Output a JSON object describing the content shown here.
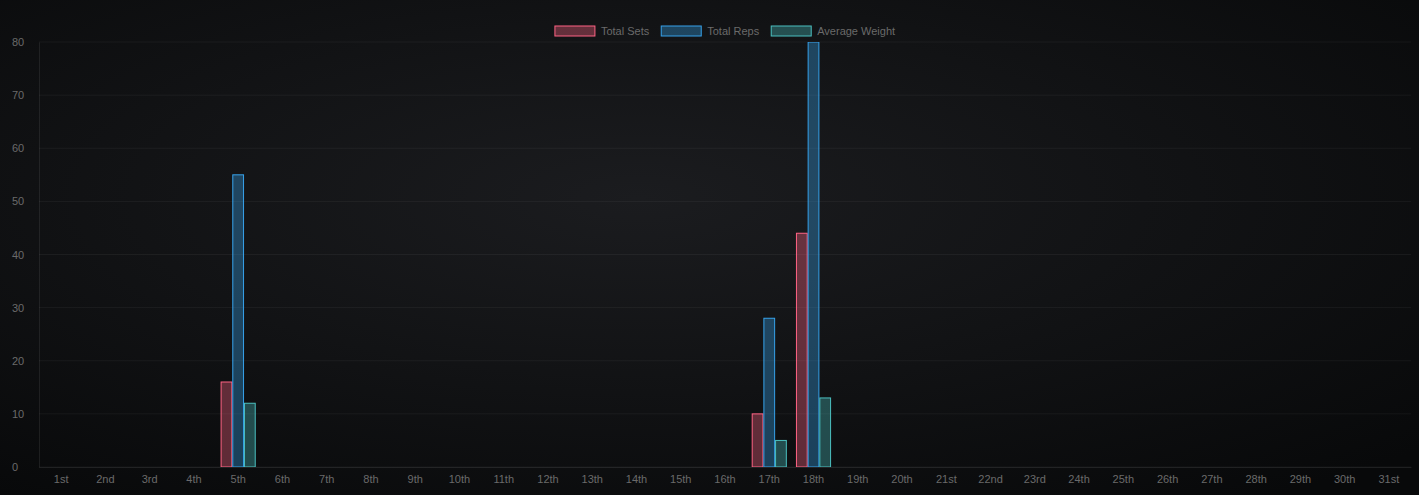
{
  "chart_data": {
    "type": "bar",
    "categories": [
      "1st",
      "2nd",
      "3rd",
      "4th",
      "5th",
      "6th",
      "7th",
      "8th",
      "9th",
      "10th",
      "11th",
      "12th",
      "13th",
      "14th",
      "15th",
      "16th",
      "17th",
      "18th",
      "19th",
      "20th",
      "21st",
      "22nd",
      "23rd",
      "24th",
      "25th",
      "26th",
      "27th",
      "28th",
      "29th",
      "30th",
      "31st"
    ],
    "series": [
      {
        "name": "Total Sets",
        "color": "#ff6384",
        "values": [
          0,
          0,
          0,
          0,
          16,
          0,
          0,
          0,
          0,
          0,
          0,
          0,
          0,
          0,
          0,
          0,
          10,
          44,
          0,
          0,
          0,
          0,
          0,
          0,
          0,
          0,
          0,
          0,
          0,
          0,
          0
        ]
      },
      {
        "name": "Total Reps",
        "color": "#36a2eb",
        "values": [
          0,
          0,
          0,
          0,
          55,
          0,
          0,
          0,
          0,
          0,
          0,
          0,
          0,
          0,
          0,
          0,
          28,
          80,
          0,
          0,
          0,
          0,
          0,
          0,
          0,
          0,
          0,
          0,
          0,
          0,
          0
        ]
      },
      {
        "name": "Average Weight",
        "color": "#4bc0c0",
        "values": [
          0,
          0,
          0,
          0,
          12,
          0,
          0,
          0,
          0,
          0,
          0,
          0,
          0,
          0,
          0,
          0,
          5,
          13,
          0,
          0,
          0,
          0,
          0,
          0,
          0,
          0,
          0,
          0,
          0,
          0,
          0
        ]
      }
    ],
    "ylim": [
      0,
      80
    ],
    "yticks": [
      0,
      10,
      20,
      30,
      40,
      50,
      60,
      70,
      80
    ],
    "grid": true,
    "legend": "top"
  }
}
